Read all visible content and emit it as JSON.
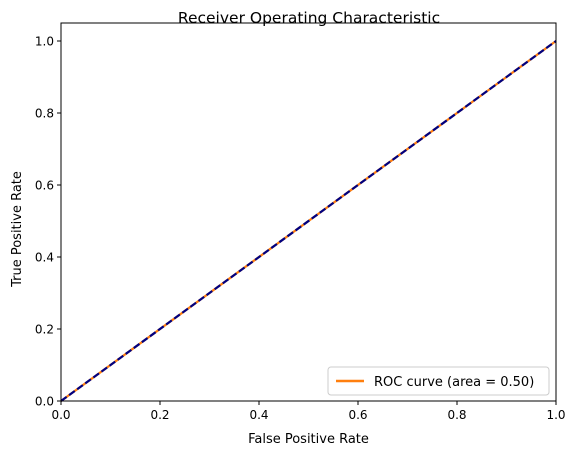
{
  "chart_data": {
    "type": "line",
    "title": "Receiver Operating Characteristic",
    "xlabel": "False Positive Rate",
    "ylabel": "True Positive Rate",
    "xlim": [
      0.0,
      1.0
    ],
    "ylim": [
      0.0,
      1.05
    ],
    "xticks": [
      0.0,
      0.2,
      0.4,
      0.6,
      0.8,
      1.0
    ],
    "yticks": [
      0.0,
      0.2,
      0.4,
      0.6,
      0.8,
      1.0
    ],
    "xtick_labels": [
      "0.0",
      "0.2",
      "0.4",
      "0.6",
      "0.8",
      "1.0"
    ],
    "ytick_labels": [
      "0.0",
      "0.2",
      "0.4",
      "0.6",
      "0.8",
      "1.0"
    ],
    "grid": false,
    "legend_position": "lower-right",
    "series": [
      {
        "name": "ROC curve (area = 0.50)",
        "color": "#ff7f0e",
        "style": "solid",
        "x": [
          0.0,
          1.0
        ],
        "y": [
          0.0,
          1.0
        ]
      },
      {
        "color": "#000080",
        "style": "dashed",
        "x": [
          0.0,
          1.0
        ],
        "y": [
          0.0,
          1.0
        ]
      }
    ]
  }
}
